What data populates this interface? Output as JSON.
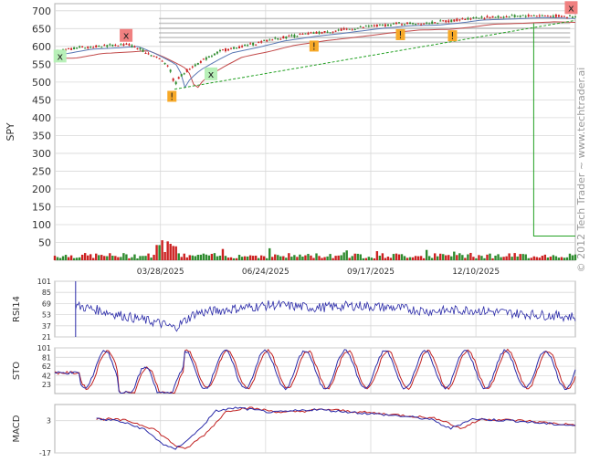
{
  "watermark": "© 2012 Tech Trader ~ www.techtrader.ai",
  "colors": {
    "up": "#2e8b2e",
    "down": "#cc2020",
    "ma_short": "#5a78b4",
    "ma_long": "#c24a4a",
    "trend": "#22a022",
    "resistance": "#a0a0a0",
    "indicator": "#2a2aa8",
    "signal": "#c02020",
    "grid": "#d8d8d8",
    "buy_bg": "#b8f0b8",
    "sell_bg": "#f08080",
    "alert_bg": "#f7a928"
  },
  "chart_data": [
    {
      "type": "line",
      "panel": "price",
      "ylabel": "SPY",
      "ylim": [
        0,
        720
      ],
      "yticks": [
        50,
        100,
        150,
        200,
        250,
        300,
        350,
        400,
        450,
        500,
        550,
        600,
        650,
        700
      ],
      "xticks": [
        "03/28/2025",
        "06/24/2025",
        "09/17/2025",
        "12/10/2025"
      ],
      "price_path": [
        {
          "t": 0.0,
          "v": 585
        },
        {
          "t": 0.05,
          "v": 598
        },
        {
          "t": 0.1,
          "v": 602
        },
        {
          "t": 0.14,
          "v": 606
        },
        {
          "t": 0.17,
          "v": 588
        },
        {
          "t": 0.2,
          "v": 566
        },
        {
          "t": 0.215,
          "v": 553
        },
        {
          "t": 0.225,
          "v": 522
        },
        {
          "t": 0.23,
          "v": 491
        },
        {
          "t": 0.24,
          "v": 515
        },
        {
          "t": 0.26,
          "v": 540
        },
        {
          "t": 0.29,
          "v": 565
        },
        {
          "t": 0.32,
          "v": 588
        },
        {
          "t": 0.37,
          "v": 603
        },
        {
          "t": 0.42,
          "v": 621
        },
        {
          "t": 0.48,
          "v": 634
        },
        {
          "t": 0.54,
          "v": 644
        },
        {
          "t": 0.6,
          "v": 655
        },
        {
          "t": 0.66,
          "v": 664
        },
        {
          "t": 0.72,
          "v": 666
        },
        {
          "t": 0.76,
          "v": 672
        },
        {
          "t": 0.8,
          "v": 680
        },
        {
          "t": 0.86,
          "v": 683
        },
        {
          "t": 0.92,
          "v": 687
        },
        {
          "t": 0.97,
          "v": 685
        },
        {
          "t": 1.0,
          "v": 682
        }
      ],
      "ma_short_offset": -6,
      "ma_long_offset": -18,
      "trendline": [
        {
          "t": 0.23,
          "v": 480
        },
        {
          "t": 1.0,
          "v": 673
        }
      ],
      "resistance_levels": [
        612,
        625,
        638,
        651,
        665,
        678
      ],
      "stop_line": {
        "t": 0.92,
        "top": 665,
        "bottom": 68
      },
      "volume_spike_t": 0.215,
      "markers": [
        {
          "label": "x",
          "kind": "buy",
          "t": 0.01,
          "v": 573
        },
        {
          "label": "x",
          "kind": "sell",
          "t": 0.137,
          "v": 631
        },
        {
          "label": "x",
          "kind": "buy",
          "t": 0.3,
          "v": 523
        },
        {
          "label": "x",
          "kind": "sell",
          "t": 0.992,
          "v": 709
        },
        {
          "label": "!",
          "kind": "alert",
          "t": 0.225,
          "v": 460
        },
        {
          "label": "!",
          "kind": "alert",
          "t": 0.498,
          "v": 601
        },
        {
          "label": "!",
          "kind": "alert",
          "t": 0.664,
          "v": 633
        },
        {
          "label": "!",
          "kind": "alert",
          "t": 0.764,
          "v": 630
        }
      ]
    },
    {
      "type": "line",
      "panel": "rsi",
      "ylabel": "RSI14",
      "ylim": [
        21,
        101
      ],
      "yticks": [
        101,
        85,
        69,
        53,
        37,
        21
      ],
      "start_t": 0.04,
      "path": [
        {
          "t": 0.04,
          "v": 66
        },
        {
          "t": 0.08,
          "v": 60
        },
        {
          "t": 0.14,
          "v": 50
        },
        {
          "t": 0.2,
          "v": 41
        },
        {
          "t": 0.23,
          "v": 34
        },
        {
          "t": 0.27,
          "v": 55
        },
        {
          "t": 0.35,
          "v": 62
        },
        {
          "t": 0.42,
          "v": 67
        },
        {
          "t": 0.5,
          "v": 63
        },
        {
          "t": 0.58,
          "v": 66
        },
        {
          "t": 0.65,
          "v": 63
        },
        {
          "t": 0.72,
          "v": 58
        },
        {
          "t": 0.8,
          "v": 60
        },
        {
          "t": 0.88,
          "v": 55
        },
        {
          "t": 0.95,
          "v": 52
        },
        {
          "t": 1.0,
          "v": 50
        }
      ]
    },
    {
      "type": "line",
      "panel": "sto",
      "ylabel": "STO",
      "ylim": [
        4,
        101
      ],
      "yticks": [
        101,
        81,
        62,
        42,
        23
      ],
      "cycles": 13
    },
    {
      "type": "line",
      "panel": "macd",
      "ylabel": "MACD",
      "ylim": [
        -17,
        13
      ],
      "yticks": [
        3,
        -17
      ],
      "start_t": 0.08,
      "path": [
        {
          "t": 0.08,
          "v": 4
        },
        {
          "t": 0.12,
          "v": 3
        },
        {
          "t": 0.17,
          "v": -2
        },
        {
          "t": 0.21,
          "v": -12
        },
        {
          "t": 0.23,
          "v": -15
        },
        {
          "t": 0.27,
          "v": -5
        },
        {
          "t": 0.31,
          "v": 9
        },
        {
          "t": 0.35,
          "v": 11
        },
        {
          "t": 0.42,
          "v": 8
        },
        {
          "t": 0.5,
          "v": 10
        },
        {
          "t": 0.58,
          "v": 8
        },
        {
          "t": 0.66,
          "v": 6
        },
        {
          "t": 0.72,
          "v": 4
        },
        {
          "t": 0.76,
          "v": -2
        },
        {
          "t": 0.8,
          "v": 4
        },
        {
          "t": 0.88,
          "v": 3
        },
        {
          "t": 0.95,
          "v": 1
        },
        {
          "t": 1.0,
          "v": 0
        }
      ]
    }
  ]
}
